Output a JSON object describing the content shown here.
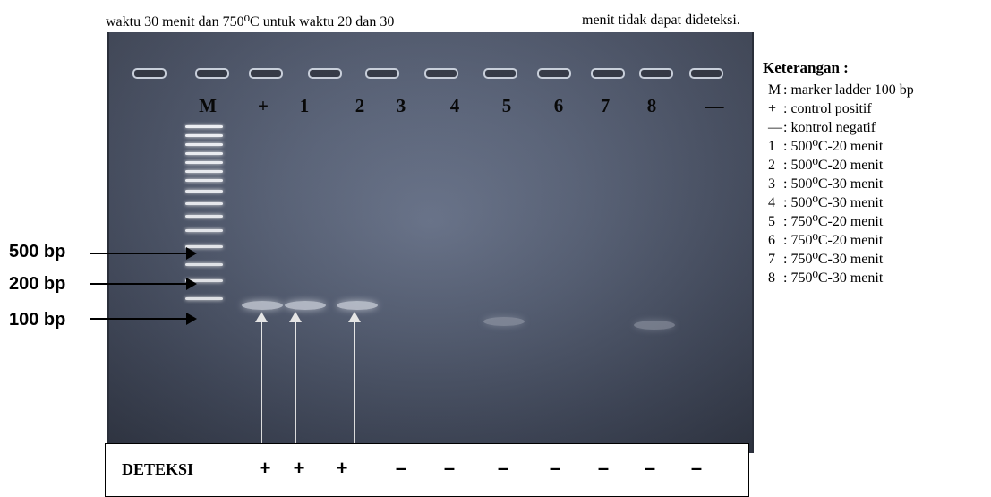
{
  "caption": {
    "left": "waktu 30 menit dan 750⁰C untuk waktu 20 dan 30",
    "right": "menit tidak dapat dideteksi."
  },
  "lanes": [
    "M",
    "+",
    "1",
    "2",
    "3",
    "4",
    "5",
    "6",
    "7",
    "8",
    "—"
  ],
  "size_markers": [
    "500 bp",
    "200 bp",
    "100 bp"
  ],
  "detection": {
    "title": "DETEKSI",
    "marks": [
      "+",
      "+",
      "+",
      "–",
      "–",
      "–",
      "–",
      "–",
      "–",
      "–"
    ]
  },
  "legend": {
    "title": "Keterangan :",
    "items": [
      {
        "key": "M",
        "text": ": marker ladder 100 bp"
      },
      {
        "key": "+",
        "text": ": control positif"
      },
      {
        "key": "—",
        "text": ": kontrol negatif"
      },
      {
        "key": "1",
        "text": ": 500⁰C-20 menit"
      },
      {
        "key": "2",
        "text": ": 500⁰C-20 menit"
      },
      {
        "key": "3",
        "text": ": 500⁰C-30 menit"
      },
      {
        "key": "4",
        "text": ": 500⁰C-30 menit"
      },
      {
        "key": "5",
        "text": ": 750⁰C-20 menit"
      },
      {
        "key": "6",
        "text": ": 750⁰C-20 menit"
      },
      {
        "key": "7",
        "text": ": 750⁰C-30 menit"
      },
      {
        "key": "8",
        "text": ": 750⁰C-30 menit"
      }
    ]
  }
}
